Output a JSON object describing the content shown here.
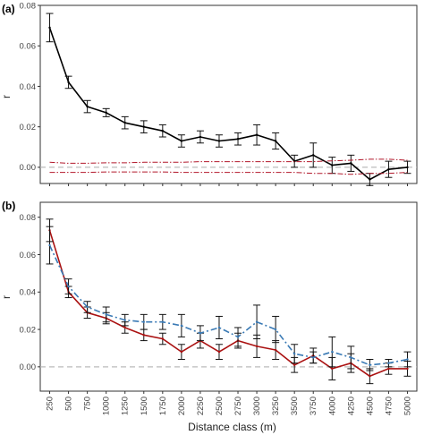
{
  "chart_data": [
    {
      "panel": "(a)",
      "type": "line",
      "ylabel": "r",
      "xlabel": "",
      "ylim": [
        -0.008,
        0.08
      ],
      "yticks": [
        "0.00",
        "0.02",
        "0.04",
        "0.06",
        "0.08"
      ],
      "x": [
        250,
        500,
        750,
        1000,
        1250,
        1500,
        1750,
        2000,
        2250,
        2500,
        2750,
        3000,
        3250,
        3500,
        3750,
        4000,
        4250,
        4500,
        4750,
        5000
      ],
      "series": [
        {
          "style": "solid-with-errorbars",
          "color": "#000000",
          "values": [
            0.069,
            0.042,
            0.03,
            0.027,
            0.022,
            0.02,
            0.018,
            0.013,
            0.015,
            0.013,
            0.014,
            0.016,
            0.013,
            0.003,
            0.006,
            0.001,
            0.002,
            -0.006,
            -0.001,
            0.0
          ],
          "err": [
            0.007,
            0.003,
            0.003,
            0.002,
            0.003,
            0.003,
            0.003,
            0.003,
            0.003,
            0.003,
            0.003,
            0.005,
            0.004,
            0.003,
            0.006,
            0.004,
            0.004,
            0.003,
            0.004,
            0.003
          ]
        },
        {
          "style": "dashdot-envelope-upper",
          "color": "#b2182b",
          "values": [
            0.0025,
            0.002,
            0.002,
            0.0022,
            0.0022,
            0.0025,
            0.0025,
            0.0025,
            0.0028,
            0.0028,
            0.0028,
            0.0028,
            0.0028,
            0.0028,
            0.0028,
            0.0032,
            0.0035,
            0.004,
            0.004,
            0.0035
          ]
        },
        {
          "style": "dashdot-envelope-lower",
          "color": "#b2182b",
          "values": [
            -0.0025,
            -0.0025,
            -0.0025,
            -0.0023,
            -0.0023,
            -0.0023,
            -0.0023,
            -0.0025,
            -0.0025,
            -0.0025,
            -0.0025,
            -0.0025,
            -0.0025,
            -0.0025,
            -0.003,
            -0.003,
            -0.0035,
            -0.003,
            -0.003,
            -0.0025
          ]
        }
      ],
      "zero_line": {
        "y": 0,
        "color": "#bbbbbb",
        "style": "dashed"
      }
    },
    {
      "panel": "(b)",
      "type": "line",
      "ylabel": "r",
      "xlabel": "Distance class (m)",
      "ylim": [
        -0.013,
        0.088
      ],
      "yticks": [
        "0.00",
        "0.02",
        "0.04",
        "0.06",
        "0.08"
      ],
      "xticks": [
        "250",
        "500",
        "750",
        "1000",
        "1250",
        "1500",
        "1750",
        "2000",
        "2250",
        "2500",
        "2750",
        "3000",
        "3250",
        "3500",
        "3750",
        "4000",
        "4250",
        "4500",
        "4750",
        "5000"
      ],
      "x": [
        250,
        500,
        750,
        1000,
        1250,
        1500,
        1750,
        2000,
        2250,
        2500,
        2750,
        3000,
        3250,
        3500,
        3750,
        4000,
        4250,
        4500,
        4750,
        5000
      ],
      "series": [
        {
          "style": "solid-with-errorbars",
          "color": "#aa1111",
          "values": [
            0.073,
            0.04,
            0.029,
            0.026,
            0.021,
            0.017,
            0.015,
            0.008,
            0.014,
            0.008,
            0.014,
            0.011,
            0.009,
            0.001,
            0.006,
            -0.001,
            0.002,
            -0.005,
            -0.001,
            -0.001
          ],
          "err": [
            0.006,
            0.003,
            0.003,
            0.003,
            0.003,
            0.003,
            0.003,
            0.004,
            0.004,
            0.004,
            0.004,
            0.006,
            0.005,
            0.004,
            0.004,
            0.006,
            0.005,
            0.004,
            0.003,
            0.004
          ]
        },
        {
          "style": "dashdot-with-errorbars",
          "color": "#3a7ab5",
          "values": [
            0.065,
            0.043,
            0.032,
            0.028,
            0.025,
            0.024,
            0.024,
            0.022,
            0.018,
            0.021,
            0.016,
            0.024,
            0.02,
            0.007,
            0.005,
            0.008,
            0.005,
            0.001,
            0.002,
            0.004
          ],
          "err": [
            0.01,
            0.004,
            0.003,
            0.004,
            0.003,
            0.004,
            0.004,
            0.006,
            0.004,
            0.006,
            0.005,
            0.009,
            0.007,
            0.005,
            0.003,
            0.008,
            0.006,
            0.003,
            0.002,
            0.004
          ]
        }
      ],
      "zero_line": {
        "y": 0,
        "color": "#bbbbbb",
        "style": "dashed"
      }
    }
  ]
}
